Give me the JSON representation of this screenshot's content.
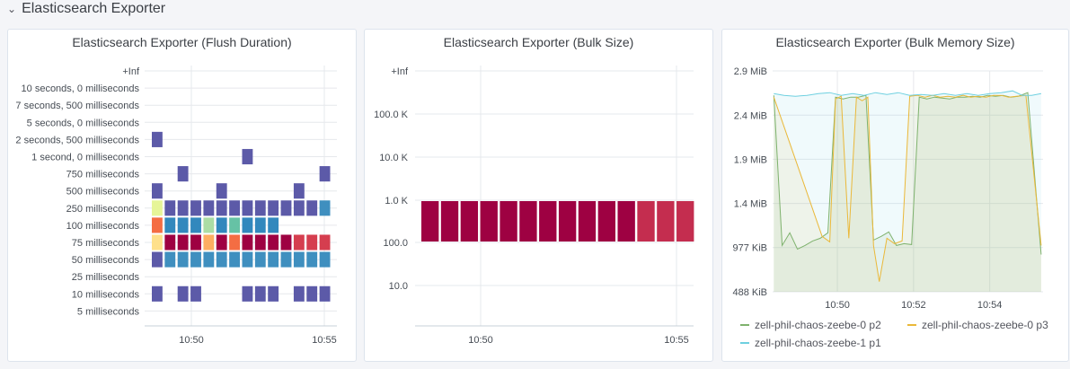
{
  "row": {
    "title": "Elasticsearch Exporter",
    "chevron": "⌄"
  },
  "panels": {
    "flush": {
      "title": "Elasticsearch Exporter (Flush Duration)"
    },
    "bulk": {
      "title": "Elasticsearch Exporter (Bulk Size)"
    },
    "memory": {
      "title": "Elasticsearch Exporter (Bulk Memory Size)"
    }
  },
  "chart_data": [
    {
      "type": "heatmap",
      "title": "Elasticsearch Exporter (Flush Duration)",
      "y_buckets": [
        "5 milliseconds",
        "10 milliseconds",
        "25 milliseconds",
        "50 milliseconds",
        "75 milliseconds",
        "100 milliseconds",
        "250 milliseconds",
        "500 milliseconds",
        "750 milliseconds",
        "1 second, 0 milliseconds",
        "2 seconds, 500 milliseconds",
        "5 seconds, 0 milliseconds",
        "7 seconds, 500 milliseconds",
        "10 seconds, 0 milliseconds",
        "+Inf"
      ],
      "x_ticks": [
        "10:50",
        "10:55"
      ],
      "time_range": [
        10.81,
        10.93
      ],
      "columns": 14,
      "cells": [
        [
          0,
          10,
          "#5c5aa8"
        ],
        [
          0,
          7,
          "#5c5aa8"
        ],
        [
          0,
          6,
          "#e6f598"
        ],
        [
          0,
          5,
          "#f46d43"
        ],
        [
          0,
          4,
          "#fee08b"
        ],
        [
          0,
          3,
          "#5c5aa8"
        ],
        [
          0,
          1,
          "#5c5aa8"
        ],
        [
          1,
          6,
          "#5c5aa8"
        ],
        [
          1,
          5,
          "#3288bd"
        ],
        [
          1,
          4,
          "#9e0142"
        ],
        [
          1,
          3,
          "#3f8fbf"
        ],
        [
          2,
          8,
          "#5c5aa8"
        ],
        [
          2,
          6,
          "#5c5aa8"
        ],
        [
          2,
          5,
          "#3288bd"
        ],
        [
          2,
          4,
          "#9e0142"
        ],
        [
          2,
          3,
          "#3f8fbf"
        ],
        [
          2,
          1,
          "#5c5aa8"
        ],
        [
          3,
          6,
          "#5c5aa8"
        ],
        [
          3,
          5,
          "#3288bd"
        ],
        [
          3,
          4,
          "#9e0142"
        ],
        [
          3,
          3,
          "#3f8fbf"
        ],
        [
          3,
          1,
          "#5c5aa8"
        ],
        [
          4,
          6,
          "#5c5aa8"
        ],
        [
          4,
          5,
          "#abdda4"
        ],
        [
          4,
          4,
          "#fdae61"
        ],
        [
          4,
          3,
          "#3f8fbf"
        ],
        [
          5,
          7,
          "#5c5aa8"
        ],
        [
          5,
          6,
          "#5c5aa8"
        ],
        [
          5,
          5,
          "#3288bd"
        ],
        [
          5,
          4,
          "#9e0142"
        ],
        [
          5,
          3,
          "#3f8fbf"
        ],
        [
          6,
          6,
          "#5c5aa8"
        ],
        [
          6,
          5,
          "#66c2a5"
        ],
        [
          6,
          4,
          "#f46d43"
        ],
        [
          6,
          3,
          "#3f8fbf"
        ],
        [
          7,
          9,
          "#5c5aa8"
        ],
        [
          7,
          6,
          "#5c5aa8"
        ],
        [
          7,
          5,
          "#3288bd"
        ],
        [
          7,
          4,
          "#9e0142"
        ],
        [
          7,
          3,
          "#3f8fbf"
        ],
        [
          7,
          1,
          "#5c5aa8"
        ],
        [
          8,
          6,
          "#5c5aa8"
        ],
        [
          8,
          5,
          "#3288bd"
        ],
        [
          8,
          4,
          "#9e0142"
        ],
        [
          8,
          3,
          "#3f8fbf"
        ],
        [
          8,
          1,
          "#5c5aa8"
        ],
        [
          9,
          6,
          "#5c5aa8"
        ],
        [
          9,
          5,
          "#3288bd"
        ],
        [
          9,
          4,
          "#9e0142"
        ],
        [
          9,
          3,
          "#3f8fbf"
        ],
        [
          9,
          1,
          "#5c5aa8"
        ],
        [
          10,
          6,
          "#5c5aa8"
        ],
        [
          10,
          4,
          "#9e0142"
        ],
        [
          10,
          3,
          "#3f8fbf"
        ],
        [
          11,
          7,
          "#5c5aa8"
        ],
        [
          11,
          6,
          "#5c5aa8"
        ],
        [
          11,
          4,
          "#d53e4f"
        ],
        [
          11,
          3,
          "#3f8fbf"
        ],
        [
          11,
          1,
          "#5c5aa8"
        ],
        [
          12,
          6,
          "#5c5aa8"
        ],
        [
          12,
          4,
          "#d53e4f"
        ],
        [
          12,
          3,
          "#3f8fbf"
        ],
        [
          12,
          1,
          "#5c5aa8"
        ],
        [
          13,
          8,
          "#5c5aa8"
        ],
        [
          13,
          6,
          "#3f8fbf"
        ],
        [
          13,
          4,
          "#d53e4f"
        ],
        [
          13,
          3,
          "#3f8fbf"
        ],
        [
          13,
          1,
          "#5c5aa8"
        ]
      ]
    },
    {
      "type": "heatmap",
      "title": "Elasticsearch Exporter (Bulk Size)",
      "y_buckets": [
        "10.0",
        "100.0",
        "1.0 K",
        "10.0 K",
        "100.0 K",
        "+Inf"
      ],
      "x_ticks": [
        "10:50",
        "10:55"
      ],
      "columns": 14,
      "cells": [
        [
          0,
          1,
          "#9e0142"
        ],
        [
          1,
          1,
          "#9e0142"
        ],
        [
          2,
          1,
          "#9e0142"
        ],
        [
          3,
          1,
          "#9e0142"
        ],
        [
          4,
          1,
          "#9e0142"
        ],
        [
          5,
          1,
          "#9e0142"
        ],
        [
          6,
          1,
          "#9e0142"
        ],
        [
          7,
          1,
          "#9e0142"
        ],
        [
          8,
          1,
          "#9e0142"
        ],
        [
          9,
          1,
          "#9e0142"
        ],
        [
          10,
          1,
          "#9e0142"
        ],
        [
          11,
          1,
          "#c42d4f"
        ],
        [
          12,
          1,
          "#c42d4f"
        ],
        [
          13,
          1,
          "#c42d4f"
        ]
      ]
    },
    {
      "type": "area",
      "title": "Elasticsearch Exporter (Bulk Memory Size)",
      "y_ticks": [
        "488 KiB",
        "977 KiB",
        "1.4 MiB",
        "1.9 MiB",
        "2.4 MiB",
        "2.9 MiB"
      ],
      "y_tick_values_kib": [
        488,
        977,
        1465,
        1953,
        2441,
        2930
      ],
      "x_ticks": [
        "10:50",
        "10:52",
        "10:54"
      ],
      "x_range": [
        48.3,
        55.4
      ],
      "ylim_kib": [
        488,
        2930
      ],
      "legend": "bottom",
      "series": [
        {
          "name": "zell-phil-chaos-zeebe-0 p2",
          "color": "#7eb26d",
          "points": [
            [
              48.33,
              2660
            ],
            [
              48.55,
              1000
            ],
            [
              48.75,
              1140
            ],
            [
              48.95,
              960
            ],
            [
              49.15,
              1000
            ],
            [
              49.35,
              1050
            ],
            [
              49.55,
              1080
            ],
            [
              49.75,
              1140
            ],
            [
              49.95,
              2640
            ],
            [
              50.15,
              2620
            ],
            [
              50.35,
              2640
            ],
            [
              50.55,
              2640
            ],
            [
              50.75,
              2660
            ],
            [
              50.95,
              1060
            ],
            [
              51.15,
              1100
            ],
            [
              51.35,
              1150
            ],
            [
              51.55,
              1000
            ],
            [
              51.75,
              1020
            ],
            [
              51.95,
              1010
            ],
            [
              52.15,
              2640
            ],
            [
              52.35,
              2620
            ],
            [
              52.55,
              2640
            ],
            [
              52.75,
              2630
            ],
            [
              52.95,
              2620
            ],
            [
              53.15,
              2640
            ],
            [
              53.35,
              2640
            ],
            [
              53.55,
              2650
            ],
            [
              53.75,
              2640
            ],
            [
              53.95,
              2660
            ],
            [
              54.15,
              2650
            ],
            [
              54.35,
              2660
            ],
            [
              54.55,
              2640
            ],
            [
              54.75,
              2650
            ],
            [
              55.0,
              2690
            ],
            [
              55.35,
              900
            ]
          ]
        },
        {
          "name": "zell-phil-chaos-zeebe-0 p3",
          "color": "#eab839",
          "points": [
            [
              48.33,
              2640
            ],
            [
              49.6,
              1100
            ],
            [
              49.8,
              1040
            ],
            [
              49.95,
              2620
            ],
            [
              50.1,
              2650
            ],
            [
              50.3,
              1080
            ],
            [
              50.5,
              2640
            ],
            [
              50.65,
              2600
            ],
            [
              50.8,
              2640
            ],
            [
              50.95,
              1000
            ],
            [
              51.1,
              600
            ],
            [
              51.3,
              1080
            ],
            [
              51.5,
              1020
            ],
            [
              51.7,
              1050
            ],
            [
              51.9,
              2650
            ],
            [
              52.1,
              2660
            ],
            [
              52.3,
              2640
            ],
            [
              52.5,
              2660
            ],
            [
              52.7,
              2640
            ],
            [
              52.9,
              2650
            ],
            [
              53.1,
              2640
            ],
            [
              53.3,
              2660
            ],
            [
              53.5,
              2640
            ],
            [
              53.7,
              2650
            ],
            [
              53.9,
              2640
            ],
            [
              54.1,
              2660
            ],
            [
              54.3,
              2660
            ],
            [
              54.5,
              2640
            ],
            [
              54.7,
              2650
            ],
            [
              54.95,
              2660
            ],
            [
              55.35,
              1000
            ]
          ]
        },
        {
          "name": "zell-phil-chaos-zeebe-1 p1",
          "color": "#6ed0e0",
          "points": [
            [
              48.33,
              2680
            ],
            [
              48.6,
              2660
            ],
            [
              48.9,
              2650
            ],
            [
              49.2,
              2660
            ],
            [
              49.5,
              2680
            ],
            [
              49.8,
              2690
            ],
            [
              50.1,
              2660
            ],
            [
              50.4,
              2680
            ],
            [
              50.7,
              2660
            ],
            [
              51.0,
              2690
            ],
            [
              51.3,
              2670
            ],
            [
              51.6,
              2690
            ],
            [
              51.9,
              2660
            ],
            [
              52.2,
              2670
            ],
            [
              52.5,
              2660
            ],
            [
              52.8,
              2680
            ],
            [
              53.1,
              2660
            ],
            [
              53.4,
              2680
            ],
            [
              53.7,
              2660
            ],
            [
              54.0,
              2680
            ],
            [
              54.3,
              2690
            ],
            [
              54.6,
              2710
            ],
            [
              54.85,
              2660
            ],
            [
              55.1,
              2660
            ],
            [
              55.35,
              2680
            ]
          ]
        }
      ]
    }
  ]
}
